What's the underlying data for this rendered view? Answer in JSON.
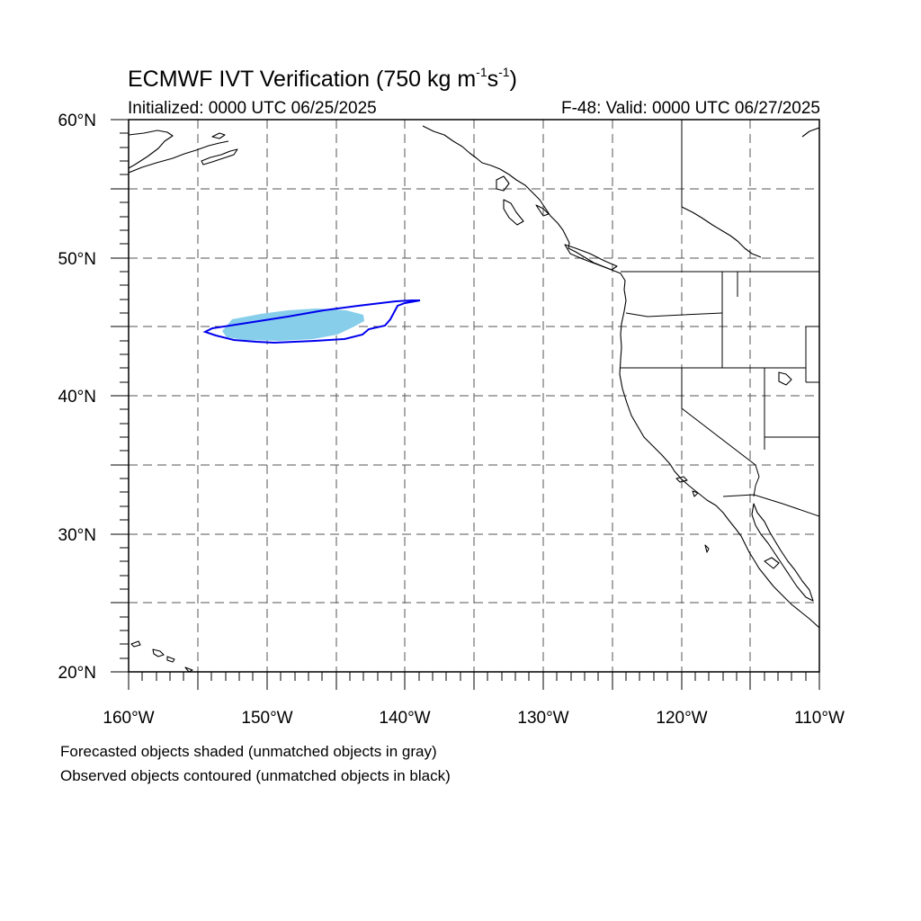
{
  "title": {
    "main": "ECMWF IVT Verification (750 kg m",
    "exp1": "-1",
    "mid": "s",
    "exp2": "-1",
    "close": ")"
  },
  "initialized": "Initialized: 0000 UTC 06/25/2025",
  "valid": "F-48: Valid: 0000 UTC 06/27/2025",
  "lat_labels": [
    "60°N",
    "50°N",
    "40°N",
    "30°N",
    "20°N"
  ],
  "lon_labels": [
    "160°W",
    "150°W",
    "140°W",
    "130°W",
    "120°W",
    "110°W"
  ],
  "extent": {
    "lon_min": -160,
    "lon_max": -110,
    "lat_min": 20,
    "lat_max": 60
  },
  "colors": {
    "forecast_fill": "#87ceeb",
    "observed_contour": "#0000ee",
    "coastline": "#000000",
    "grid": "#555555"
  },
  "notes": [
    "Forecasted objects shaded (unmatched objects in gray)",
    "Observed objects contoured (unmatched objects in black)"
  ]
}
